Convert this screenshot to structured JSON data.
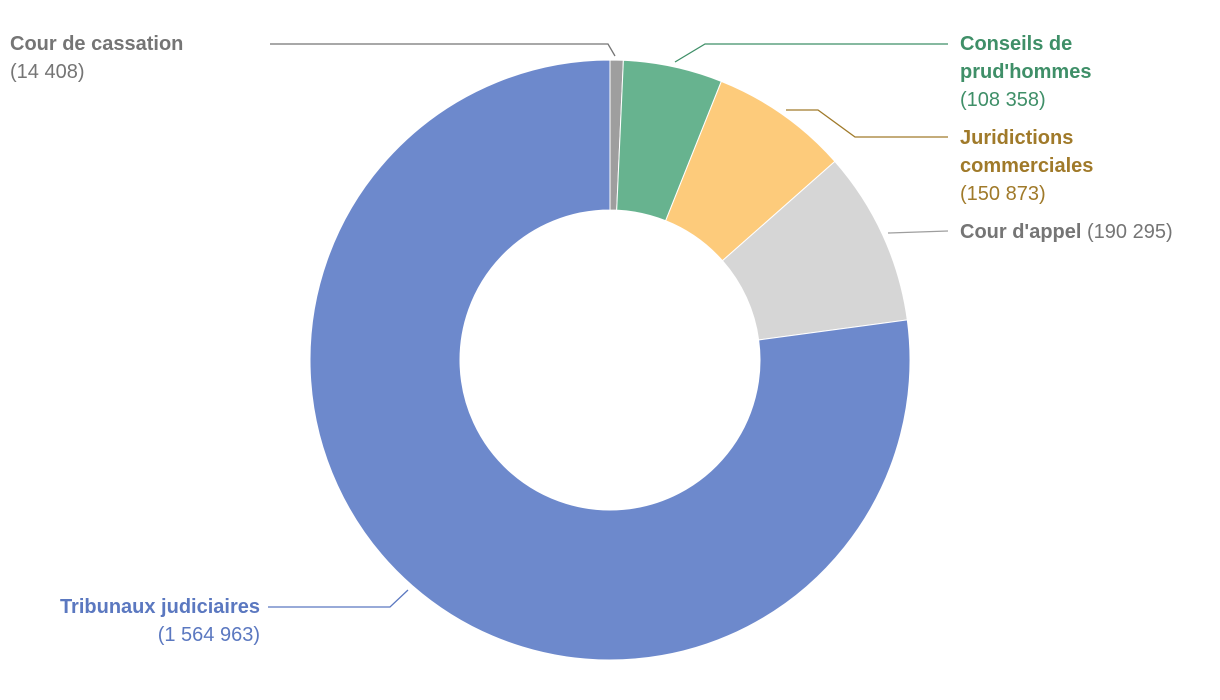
{
  "chart_data": {
    "type": "donut",
    "categories": [
      "Cour de cassation",
      "Conseils de prud'hommes",
      "Juridictions commerciales",
      "Cour d'appel",
      "Tribunaux judiciaires"
    ],
    "values": [
      14408,
      108358,
      150873,
      190295,
      1564963
    ],
    "value_labels": [
      "(14 408)",
      "(108 358)",
      "(150 873)",
      "(190 295)",
      "(1 564 963)"
    ],
    "colors": [
      "#9e9e9e",
      "#67b38f",
      "#fdcb7b",
      "#d6d6d6",
      "#6d89cc"
    ],
    "label_colors": [
      "#757575",
      "#3f8f68",
      "#a07a2a",
      "#757575",
      "#5b78c0"
    ]
  }
}
